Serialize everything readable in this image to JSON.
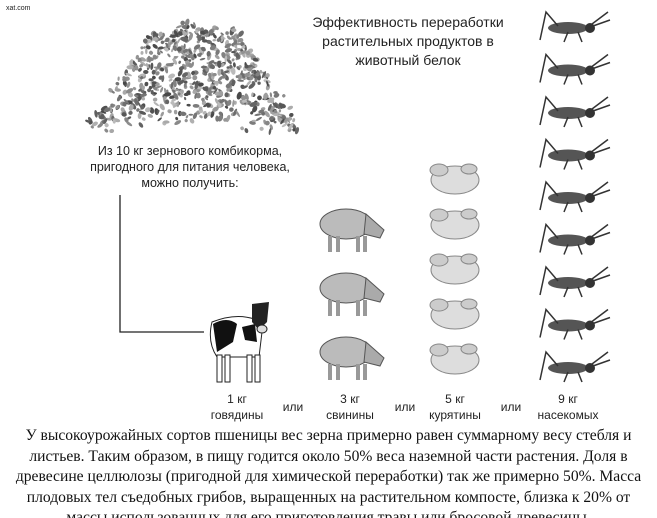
{
  "watermark": "xat.com",
  "title": [
    "Эффективность переработки",
    "растительных продуктов в",
    "животный белок"
  ],
  "intro": [
    "Из 10 кг зернового комбикорма,",
    "пригодного для питания человека,",
    "можно получить:"
  ],
  "unit": "кг",
  "items": [
    {
      "amount": 1,
      "name": "говядины"
    },
    {
      "amount": 3,
      "name": "свинины"
    },
    {
      "amount": 5,
      "name": "курятины"
    },
    {
      "amount": 9,
      "name": "насекомых"
    }
  ],
  "separator": "или",
  "paragraph": "У высокоурожайных сортов пшеницы вес зерна примерно равен суммарному весу стебля и листьев. Таким образом, в пищу годится около 50% веса наземной части растения. Доля в древесине целлюлозы (пригодной для химической переработки) так же примерно 50%. Масса плодовых тел съедобных грибов, выращенных на растительном компосте, близка к 20% от массы использованных для его приготовления травы или бросовой древесины."
}
